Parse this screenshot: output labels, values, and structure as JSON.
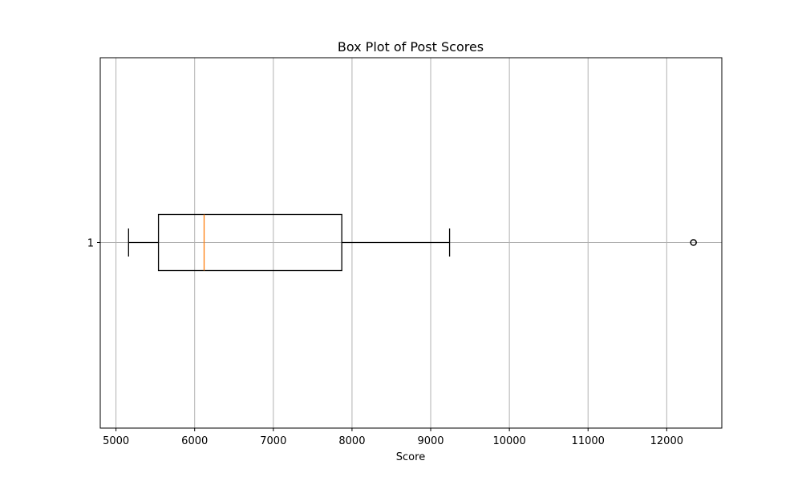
{
  "chart_data": {
    "type": "box",
    "orientation": "horizontal",
    "title": "Box Plot of Post Scores",
    "xlabel": "Score",
    "ylabel": "",
    "xlim": [
      4800,
      12700
    ],
    "xticks": [
      5000,
      6000,
      7000,
      8000,
      9000,
      10000,
      11000,
      12000
    ],
    "categories": [
      "1"
    ],
    "boxes": [
      {
        "category": "1",
        "whisker_low": 5160,
        "q1": 5540,
        "median": 6120,
        "q3": 7870,
        "whisker_high": 9240,
        "outliers": [
          12340
        ]
      }
    ],
    "grid": true,
    "colors": {
      "box": "#000000",
      "median": "#ff7f0e",
      "grid": "#b0b0b0",
      "outlier": "#000000"
    }
  }
}
